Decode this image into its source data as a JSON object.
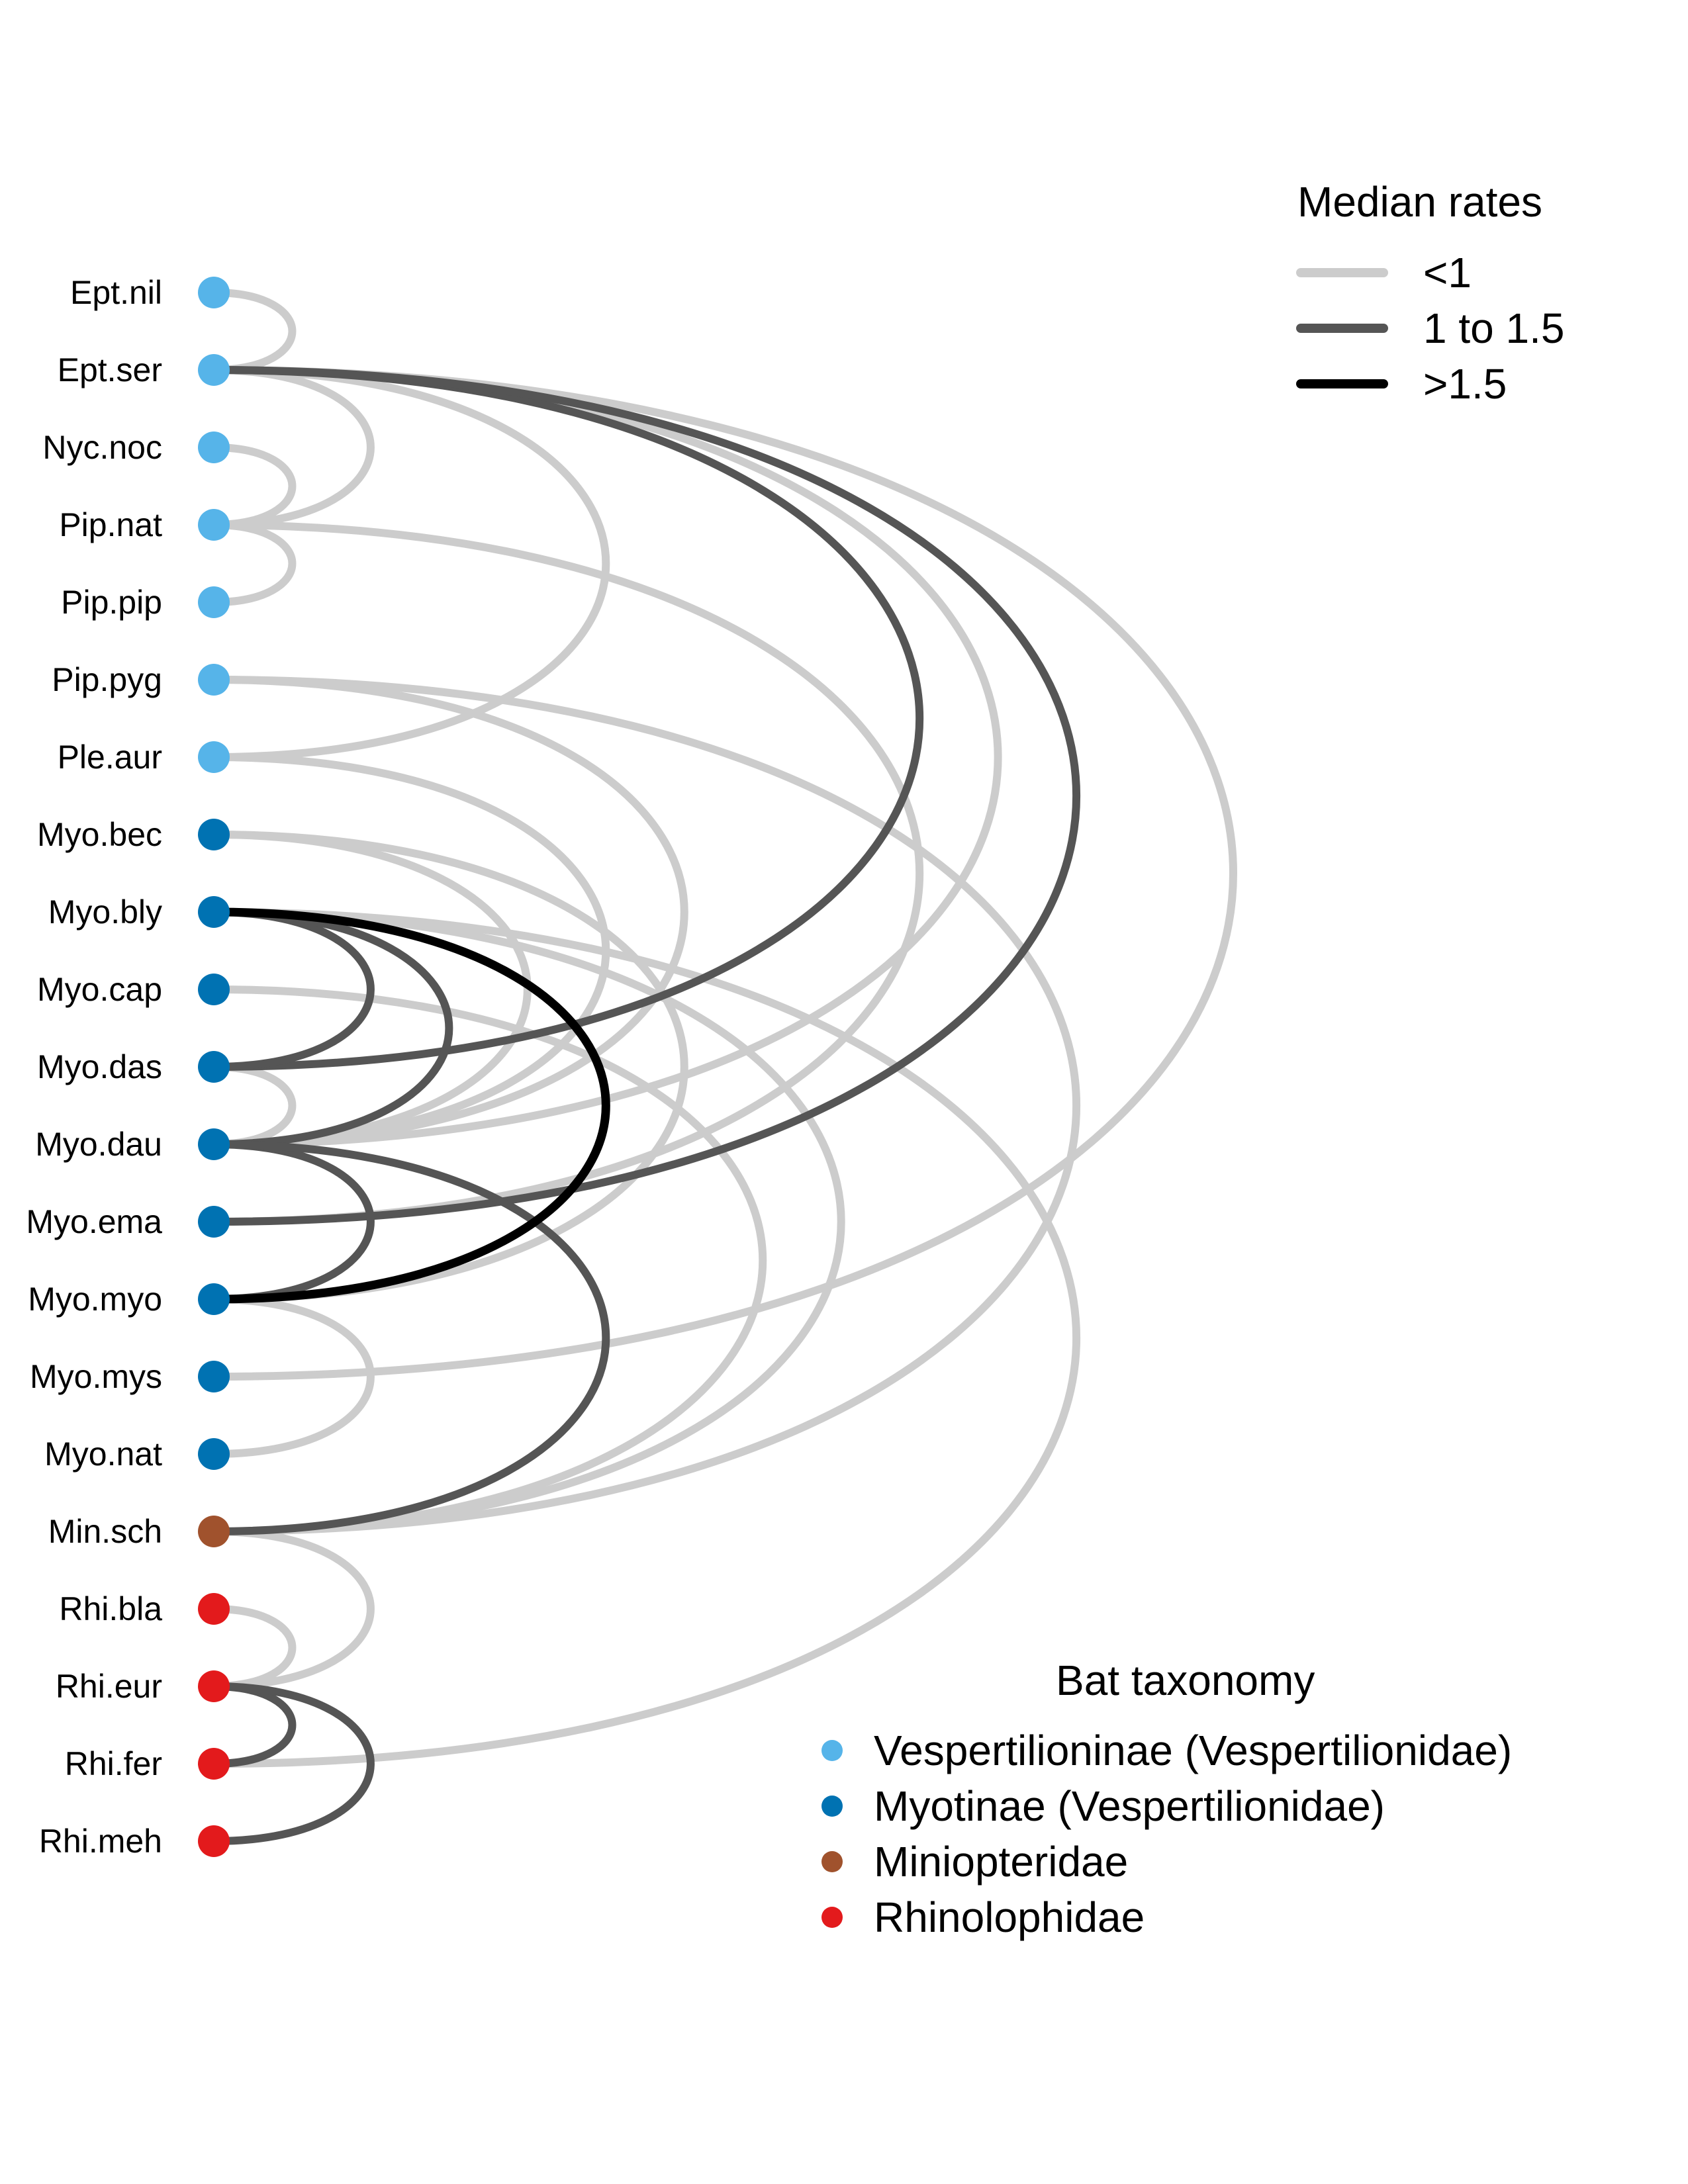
{
  "colors": {
    "Vespertilioninae": "#56B4E9",
    "Myotinae": "#0072B2",
    "Miniopteridae": "#A0522D",
    "Rhinolophidae": "#E31A1C",
    "rate_low": "#CCCCCC",
    "rate_mid": "#555555",
    "rate_high": "#000000"
  },
  "nodes": [
    {
      "label": "Ept.nil",
      "group": "Vespertilioninae"
    },
    {
      "label": "Ept.ser",
      "group": "Vespertilioninae"
    },
    {
      "label": "Nyc.noc",
      "group": "Vespertilioninae"
    },
    {
      "label": "Pip.nat",
      "group": "Vespertilioninae"
    },
    {
      "label": "Pip.pip",
      "group": "Vespertilioninae"
    },
    {
      "label": "Pip.pyg",
      "group": "Vespertilioninae"
    },
    {
      "label": "Ple.aur",
      "group": "Vespertilioninae"
    },
    {
      "label": "Myo.bec",
      "group": "Myotinae"
    },
    {
      "label": "Myo.bly",
      "group": "Myotinae"
    },
    {
      "label": "Myo.cap",
      "group": "Myotinae"
    },
    {
      "label": "Myo.das",
      "group": "Myotinae"
    },
    {
      "label": "Myo.dau",
      "group": "Myotinae"
    },
    {
      "label": "Myo.ema",
      "group": "Myotinae"
    },
    {
      "label": "Myo.myo",
      "group": "Myotinae"
    },
    {
      "label": "Myo.mys",
      "group": "Myotinae"
    },
    {
      "label": "Myo.nat",
      "group": "Myotinae"
    },
    {
      "label": "Min.sch",
      "group": "Miniopteridae"
    },
    {
      "label": "Rhi.bla",
      "group": "Rhinolophidae"
    },
    {
      "label": "Rhi.eur",
      "group": "Rhinolophidae"
    },
    {
      "label": "Rhi.fer",
      "group": "Rhinolophidae"
    },
    {
      "label": "Rhi.meh",
      "group": "Rhinolophidae"
    }
  ],
  "edges": [
    {
      "from": "Ept.nil",
      "to": "Ept.ser",
      "rate": "<1"
    },
    {
      "from": "Ept.ser",
      "to": "Pip.nat",
      "rate": "<1"
    },
    {
      "from": "Ept.ser",
      "to": "Ple.aur",
      "rate": "<1"
    },
    {
      "from": "Ept.ser",
      "to": "Myo.das",
      "rate": "1 to 1.5"
    },
    {
      "from": "Ept.ser",
      "to": "Myo.dau",
      "rate": "<1"
    },
    {
      "from": "Ept.ser",
      "to": "Myo.ema",
      "rate": "1 to 1.5"
    },
    {
      "from": "Ept.ser",
      "to": "Myo.mys",
      "rate": "<1"
    },
    {
      "from": "Nyc.noc",
      "to": "Pip.nat",
      "rate": "<1"
    },
    {
      "from": "Pip.nat",
      "to": "Pip.pip",
      "rate": "<1"
    },
    {
      "from": "Pip.nat",
      "to": "Myo.ema",
      "rate": "<1"
    },
    {
      "from": "Pip.pyg",
      "to": "Myo.dau",
      "rate": "<1"
    },
    {
      "from": "Pip.pyg",
      "to": "Min.sch",
      "rate": "<1"
    },
    {
      "from": "Ple.aur",
      "to": "Myo.dau",
      "rate": "<1"
    },
    {
      "from": "Myo.bec",
      "to": "Myo.dau",
      "rate": "<1"
    },
    {
      "from": "Myo.bec",
      "to": "Myo.myo",
      "rate": "<1"
    },
    {
      "from": "Myo.bly",
      "to": "Myo.das",
      "rate": "1 to 1.5"
    },
    {
      "from": "Myo.bly",
      "to": "Myo.dau",
      "rate": "1 to 1.5"
    },
    {
      "from": "Myo.bly",
      "to": "Myo.myo",
      "rate": ">1.5"
    },
    {
      "from": "Myo.bly",
      "to": "Min.sch",
      "rate": "<1"
    },
    {
      "from": "Myo.bly",
      "to": "Rhi.fer",
      "rate": "<1"
    },
    {
      "from": "Myo.cap",
      "to": "Min.sch",
      "rate": "<1"
    },
    {
      "from": "Myo.das",
      "to": "Myo.dau",
      "rate": "<1"
    },
    {
      "from": "Myo.dau",
      "to": "Myo.myo",
      "rate": "1 to 1.5"
    },
    {
      "from": "Myo.dau",
      "to": "Min.sch",
      "rate": "1 to 1.5"
    },
    {
      "from": "Myo.myo",
      "to": "Myo.nat",
      "rate": "<1"
    },
    {
      "from": "Min.sch",
      "to": "Rhi.eur",
      "rate": "<1"
    },
    {
      "from": "Rhi.bla",
      "to": "Rhi.eur",
      "rate": "<1"
    },
    {
      "from": "Rhi.eur",
      "to": "Rhi.fer",
      "rate": "1 to 1.5"
    },
    {
      "from": "Rhi.eur",
      "to": "Rhi.meh",
      "rate": "1 to 1.5"
    }
  ],
  "legend_rates": {
    "title": "Median rates",
    "items": [
      {
        "label": "<1",
        "color_key": "rate_low"
      },
      {
        "label": "1 to 1.5",
        "color_key": "rate_mid"
      },
      {
        "label": ">1.5",
        "color_key": "rate_high"
      }
    ]
  },
  "legend_taxonomy": {
    "title": "Bat taxonomy",
    "items": [
      {
        "label": "Vespertilioninae (Vespertilionidae)",
        "color_key": "Vespertilioninae"
      },
      {
        "label": "Myotinae (Vespertilionidae)",
        "color_key": "Myotinae"
      },
      {
        "label": "Miniopteridae",
        "color_key": "Miniopteridae"
      },
      {
        "label": "Rhinolophidae",
        "color_key": "Rhinolophidae"
      }
    ]
  }
}
